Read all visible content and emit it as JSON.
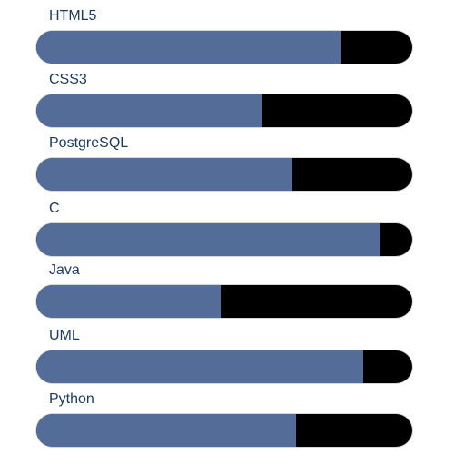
{
  "colors": {
    "fill": "#536d98",
    "track": "#000000",
    "label": "#1c3a57"
  },
  "skills": [
    {
      "label": "HTML5",
      "level_percent": 81
    },
    {
      "label": "CSS3",
      "level_percent": 60
    },
    {
      "label": "PostgreSQL",
      "level_percent": 68
    },
    {
      "label": "C",
      "level_percent": 91.5
    },
    {
      "label": "Java",
      "level_percent": 49
    },
    {
      "label": "UML",
      "level_percent": 87
    },
    {
      "label": "Python",
      "level_percent": 69
    }
  ]
}
